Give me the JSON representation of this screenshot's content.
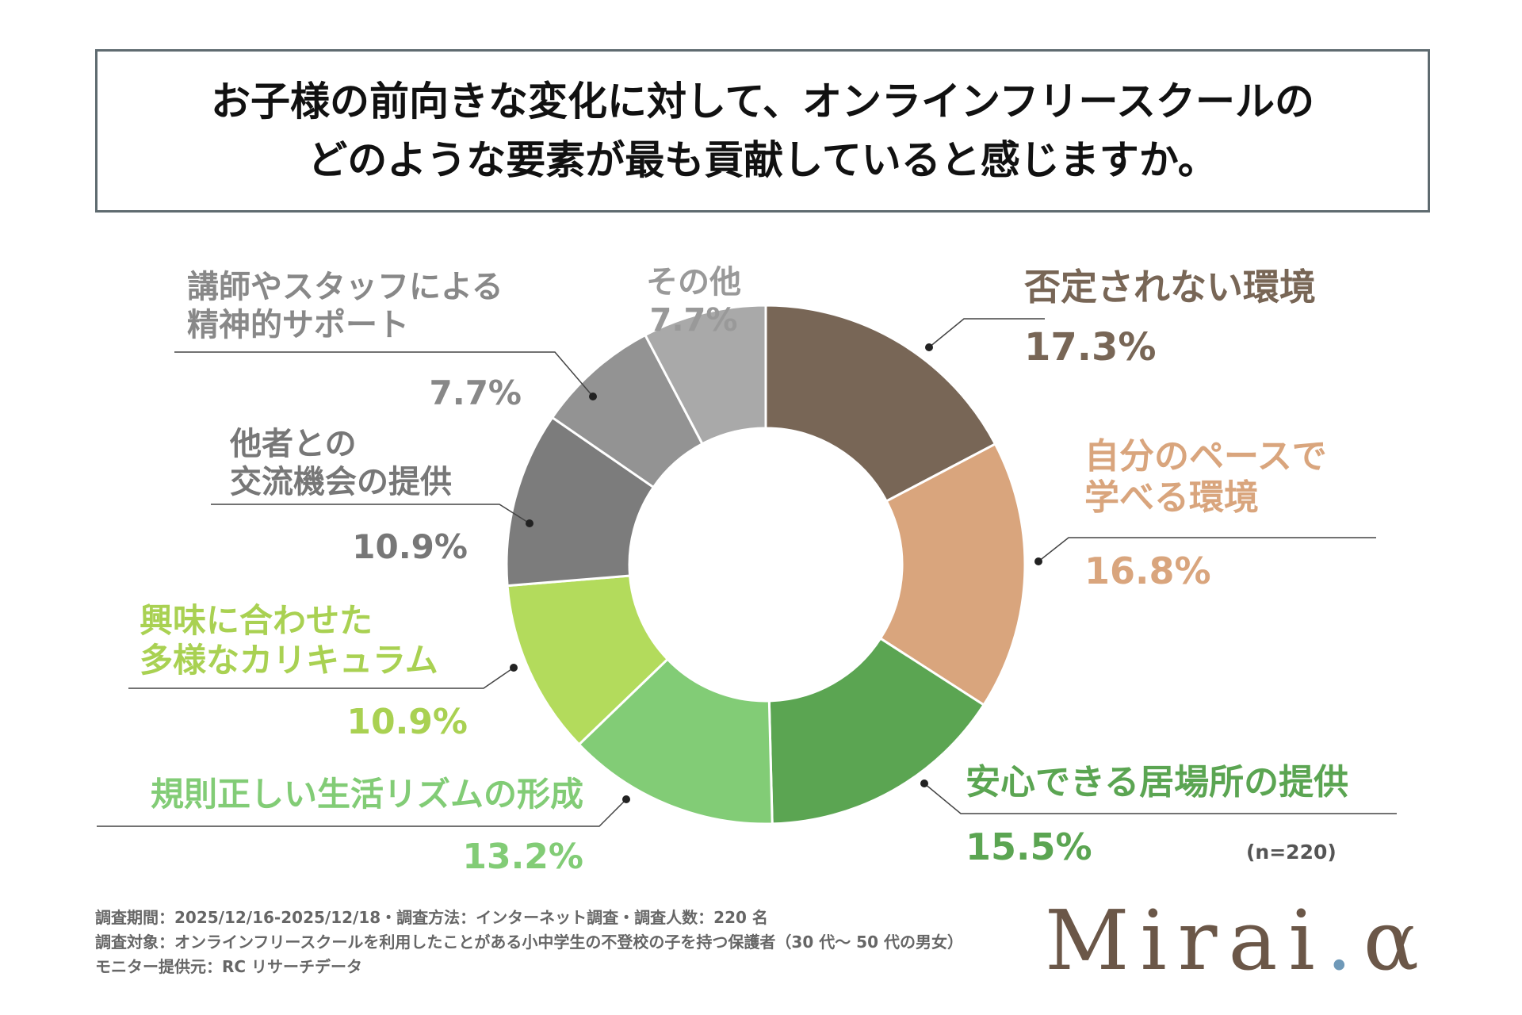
{
  "title": {
    "line1": "お子様の前向きな変化に対して、オンラインフリースクールの",
    "line2": "どのような要素が最も貢献していると感じますか。"
  },
  "chart_data": {
    "type": "pie",
    "donut": true,
    "start": "top, clockwise",
    "slices": [
      {
        "name": "否定されない環境",
        "value": 17.3,
        "label": "17.3%",
        "color": "#786656"
      },
      {
        "name": "自分のペースで学べる環境",
        "value": 16.8,
        "label": "16.8%",
        "color": "#d9a57d"
      },
      {
        "name": "安心できる居場所の提供",
        "value": 15.5,
        "label": "15.5%",
        "color": "#5ba552"
      },
      {
        "name": "規則正しい生活リズムの形成",
        "value": 13.2,
        "label": "13.2%",
        "color": "#82cc76"
      },
      {
        "name": "興味に合わせた多様なカリキュラム",
        "value": 10.9,
        "label": "10.9%",
        "color": "#b3db5c"
      },
      {
        "name": "他者との交流機会の提供",
        "value": 10.9,
        "label": "10.9%",
        "color": "#7c7c7c"
      },
      {
        "name": "講師やスタッフによる精神的サポート",
        "value": 7.7,
        "label": "7.7%",
        "color": "#939393"
      },
      {
        "name": "その他",
        "value": 7.7,
        "label": "7.7%",
        "color": "#a9a9a9"
      }
    ]
  },
  "labels": {
    "s0": {
      "name": "否定されない環境",
      "pct": "17.3%"
    },
    "s1": {
      "line1": "自分のペースで",
      "line2": "学べる環境",
      "pct": "16.8%"
    },
    "s2": {
      "name": "安心できる居場所の提供",
      "pct": "15.5%"
    },
    "s3": {
      "name": "規則正しい生活リズムの形成",
      "pct": "13.2%"
    },
    "s4": {
      "line1": "興味に合わせた",
      "line2": "多様なカリキュラム",
      "pct": "10.9%"
    },
    "s5": {
      "line1": "他者との",
      "line2": "交流機会の提供",
      "pct": "10.9%"
    },
    "s6": {
      "line1": "講師やスタッフによる",
      "line2": "精神的サポート",
      "pct": "7.7%"
    },
    "s7": {
      "name": "その他",
      "pct": "7.7%"
    }
  },
  "sample_note": "(n=220)",
  "footer": {
    "line1": "調査期間：2025/12/16-2025/12/18・調査方法：インターネット調査・調査人数：220 名",
    "line2": "調査対象：オンラインフリースクールを利用したことがある小中学生の不登校の子を持つ保護者（30 代～ 50 代の男女）",
    "line3": "モニター提供元：RC リサーチデータ"
  },
  "logo": {
    "main": "Mirai",
    "dot": ".",
    "suffix": "α"
  }
}
